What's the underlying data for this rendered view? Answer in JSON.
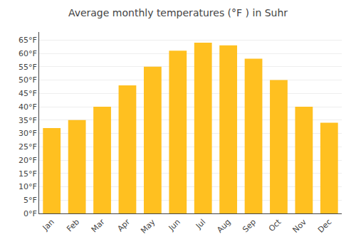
{
  "chart_data": {
    "type": "bar",
    "title": "Average monthly temperatures (°F ) in Suhr",
    "categories": [
      "Jan",
      "Feb",
      "Mar",
      "Apr",
      "May",
      "Jun",
      "Jul",
      "Aug",
      "Sep",
      "Oct",
      "Nov",
      "Dec"
    ],
    "values": [
      32,
      35,
      40,
      48,
      55,
      61,
      64,
      63,
      58,
      50,
      40,
      34
    ],
    "color": "#FFC020",
    "ylim": [
      0,
      68
    ],
    "yticks": [
      {
        "value": 0,
        "label": "0°F"
      },
      {
        "value": 5,
        "label": "5°F"
      },
      {
        "value": 10,
        "label": "10°F"
      },
      {
        "value": 15,
        "label": "15°F"
      },
      {
        "value": 20,
        "label": "20°F"
      },
      {
        "value": 25,
        "label": "25°F"
      },
      {
        "value": 30,
        "label": "30°F"
      },
      {
        "value": 35,
        "label": "35°F"
      },
      {
        "value": 40,
        "label": "40°F"
      },
      {
        "value": 45,
        "label": "45°F"
      },
      {
        "value": 50,
        "label": "50°F"
      },
      {
        "value": 55,
        "label": "55°F"
      },
      {
        "value": 60,
        "label": "60°F"
      },
      {
        "value": 65,
        "label": "65°F"
      }
    ],
    "grid": true
  }
}
